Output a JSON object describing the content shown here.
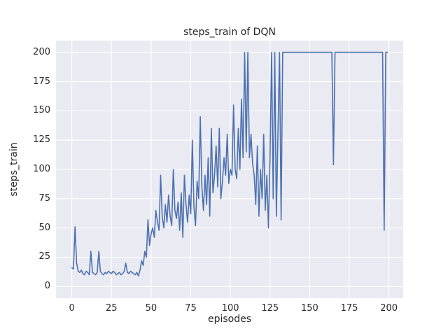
{
  "chart_data": {
    "type": "line",
    "title": "steps_train of DQN",
    "xlabel": "episodes",
    "ylabel": "steps_train",
    "xlim": [
      -10,
      209
    ],
    "ylim": [
      -10,
      210
    ],
    "xticks": [
      0,
      25,
      50,
      75,
      100,
      125,
      150,
      175,
      200
    ],
    "yticks": [
      0,
      25,
      50,
      75,
      100,
      125,
      150,
      175,
      200
    ],
    "grid": true,
    "legend": "none",
    "line_color": "#4c72b0",
    "axes_background": "#eaeaf2",
    "grid_color": "#ffffff",
    "x_start": 0,
    "x_step": 1,
    "series": [
      {
        "name": "steps_train",
        "values": [
          16,
          15,
          51,
          20,
          13,
          12,
          14,
          11,
          10,
          13,
          12,
          10,
          30,
          12,
          11,
          10,
          12,
          30,
          13,
          11,
          10,
          12,
          11,
          13,
          12,
          11,
          13,
          12,
          10,
          11,
          12,
          10,
          11,
          13,
          20,
          12,
          11,
          13,
          12,
          11,
          10,
          12,
          9,
          14,
          22,
          18,
          30,
          25,
          57,
          35,
          45,
          50,
          42,
          65,
          55,
          48,
          95,
          60,
          50,
          70,
          55,
          78,
          60,
          52,
          100,
          65,
          58,
          72,
          48,
          80,
          42,
          95,
          70,
          55,
          78,
          62,
          125,
          68,
          52,
          90,
          75,
          145,
          85,
          65,
          95,
          70,
          110,
          60,
          135,
          80,
          95,
          120,
          85,
          135,
          75,
          90,
          110,
          95,
          130,
          88,
          100,
          95,
          155,
          100,
          92,
          135,
          100,
          160,
          110,
          200,
          115,
          200,
          110,
          130,
          105,
          95,
          70,
          120,
          60,
          100,
          75,
          130,
          65,
          95,
          50,
          110,
          200,
          75,
          200,
          60,
          130,
          200,
          57,
          200,
          200,
          200,
          200,
          200,
          200,
          200,
          200,
          200,
          200,
          200,
          200,
          200,
          200,
          200,
          200,
          200,
          200,
          200,
          200,
          200,
          200,
          200,
          200,
          200,
          200,
          200,
          200,
          200,
          200,
          200,
          200,
          104,
          200,
          200,
          200,
          200,
          200,
          200,
          200,
          200,
          200,
          200,
          200,
          200,
          200,
          200,
          200,
          200,
          200,
          200,
          200,
          200,
          200,
          200,
          200,
          200,
          200,
          200,
          200,
          200,
          200,
          200,
          200,
          48,
          200,
          200
        ]
      }
    ]
  }
}
